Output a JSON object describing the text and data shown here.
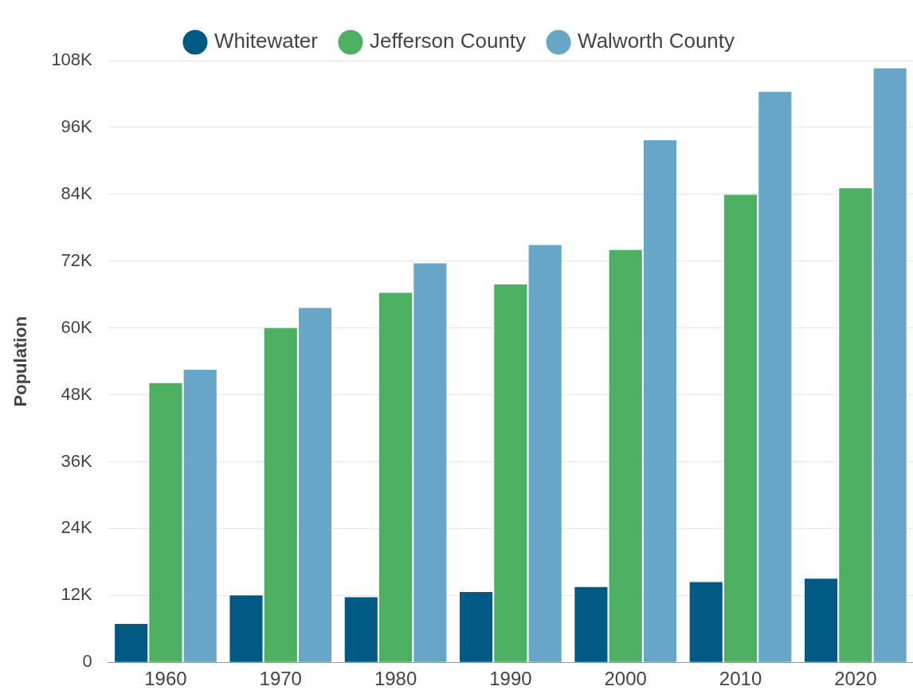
{
  "chart_data": {
    "type": "bar",
    "ylabel": "Population",
    "categories": [
      "1960",
      "1970",
      "1980",
      "1990",
      "2000",
      "2010",
      "2020"
    ],
    "series": [
      {
        "name": "Whitewater",
        "color": "#005a84",
        "values": [
          6900,
          12000,
          11700,
          12600,
          13500,
          14400,
          15000
        ]
      },
      {
        "name": "Jefferson County",
        "color": "#4daf62",
        "values": [
          50100,
          60000,
          66300,
          67800,
          74000,
          83900,
          85100
        ]
      },
      {
        "name": "Walworth County",
        "color": "#68a6c7",
        "values": [
          52500,
          63600,
          71600,
          74900,
          93700,
          102400,
          106600
        ]
      }
    ],
    "ylim": [
      0,
      108000
    ],
    "yticks": [
      0,
      {
        "value": 12000,
        "label": "12K"
      },
      {
        "value": 24000,
        "label": "24K"
      },
      {
        "value": 36000,
        "label": "36K"
      },
      {
        "value": 48000,
        "label": "48K"
      },
      {
        "value": 60000,
        "label": "60K"
      },
      {
        "value": 72000,
        "label": "72K"
      },
      {
        "value": 84000,
        "label": "84K"
      },
      {
        "value": 96000,
        "label": "96K"
      },
      {
        "value": 108000,
        "label": "108K"
      }
    ],
    "grid": "y",
    "legend": "top"
  }
}
